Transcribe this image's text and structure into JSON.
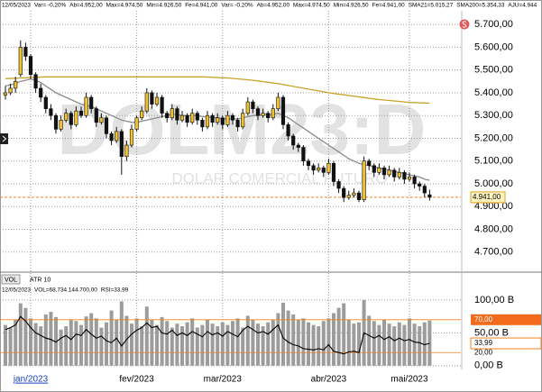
{
  "chart_data": [
    {
      "type": "candlestick",
      "info_items": [
        "12/05/2023",
        "Var= -0,20%",
        "Ab=4.952,00",
        "Max=4.974,50",
        "Min=4.926,50",
        "Fe=4.941,00",
        "Var= -0,20%",
        "Ab=4.952,00",
        "Max=4.974,50",
        "Min=4.926,50",
        "Fe=4.941,00",
        "SMA21=5.015,27",
        "SMA200=5.354,33",
        "AJU=4.944"
      ],
      "watermark": [
        "DOLM23:D",
        "DOLAR COMERCIAL FUTURO"
      ],
      "colors": {
        "up": "#f2c12e",
        "down": "#111111"
      },
      "ohlc": [
        [
          5390,
          5430,
          5370,
          5400
        ],
        [
          5400,
          5440,
          5390,
          5420
        ],
        [
          5420,
          5470,
          5400,
          5450
        ],
        [
          5480,
          5630,
          5470,
          5600
        ],
        [
          5600,
          5620,
          5540,
          5560
        ],
        [
          5560,
          5570,
          5460,
          5480
        ],
        [
          5480,
          5490,
          5400,
          5420
        ],
        [
          5420,
          5440,
          5360,
          5380
        ],
        [
          5380,
          5390,
          5310,
          5330
        ],
        [
          5330,
          5350,
          5280,
          5300
        ],
        [
          5300,
          5310,
          5220,
          5240
        ],
        [
          5240,
          5300,
          5230,
          5280
        ],
        [
          5280,
          5330,
          5270,
          5310
        ],
        [
          5310,
          5320,
          5240,
          5260
        ],
        [
          5260,
          5340,
          5250,
          5320
        ],
        [
          5320,
          5340,
          5290,
          5300
        ],
        [
          5300,
          5400,
          5290,
          5380
        ],
        [
          5380,
          5390,
          5310,
          5330
        ],
        [
          5330,
          5340,
          5250,
          5270
        ],
        [
          5270,
          5310,
          5260,
          5290
        ],
        [
          5290,
          5300,
          5200,
          5220
        ],
        [
          5220,
          5230,
          5170,
          5190
        ],
        [
          5190,
          5250,
          5180,
          5230
        ],
        [
          5230,
          5240,
          5040,
          5120
        ],
        [
          5120,
          5190,
          5100,
          5170
        ],
        [
          5170,
          5260,
          5160,
          5240
        ],
        [
          5240,
          5300,
          5230,
          5290
        ],
        [
          5290,
          5340,
          5280,
          5320
        ],
        [
          5320,
          5420,
          5310,
          5400
        ],
        [
          5400,
          5410,
          5330,
          5350
        ],
        [
          5350,
          5400,
          5340,
          5380
        ],
        [
          5380,
          5390,
          5290,
          5310
        ],
        [
          5310,
          5320,
          5270,
          5290
        ],
        [
          5290,
          5350,
          5280,
          5330
        ],
        [
          5330,
          5340,
          5260,
          5280
        ],
        [
          5280,
          5320,
          5270,
          5300
        ],
        [
          5300,
          5310,
          5250,
          5270
        ],
        [
          5270,
          5330,
          5260,
          5310
        ],
        [
          5310,
          5320,
          5260,
          5280
        ],
        [
          5280,
          5290,
          5230,
          5250
        ],
        [
          5250,
          5320,
          5240,
          5300
        ],
        [
          5300,
          5310,
          5250,
          5270
        ],
        [
          5270,
          5310,
          5260,
          5290
        ],
        [
          5290,
          5300,
          5240,
          5260
        ],
        [
          5260,
          5320,
          5250,
          5300
        ],
        [
          5300,
          5310,
          5260,
          5280
        ],
        [
          5280,
          5290,
          5230,
          5250
        ],
        [
          5250,
          5330,
          5240,
          5310
        ],
        [
          5310,
          5380,
          5300,
          5360
        ],
        [
          5360,
          5370,
          5310,
          5330
        ],
        [
          5330,
          5340,
          5280,
          5300
        ],
        [
          5300,
          5330,
          5290,
          5310
        ],
        [
          5310,
          5320,
          5270,
          5290
        ],
        [
          5290,
          5350,
          5280,
          5330
        ],
        [
          5330,
          5400,
          5320,
          5380
        ],
        [
          5380,
          5390,
          5240,
          5260
        ],
        [
          5260,
          5270,
          5190,
          5210
        ],
        [
          5210,
          5220,
          5150,
          5170
        ],
        [
          5170,
          5180,
          5140,
          5160
        ],
        [
          5160,
          5170,
          5080,
          5100
        ],
        [
          5100,
          5110,
          5060,
          5080
        ],
        [
          5080,
          5090,
          5040,
          5060
        ],
        [
          5060,
          5090,
          5050,
          5070
        ],
        [
          5070,
          5080,
          5030,
          5050
        ],
        [
          5050,
          5110,
          5040,
          5090
        ],
        [
          5090,
          5100,
          4990,
          5010
        ],
        [
          5010,
          5020,
          4960,
          4980
        ],
        [
          4980,
          4990,
          4920,
          4940
        ],
        [
          4940,
          4970,
          4930,
          4950
        ],
        [
          4950,
          4980,
          4940,
          4960
        ],
        [
          4960,
          4970,
          4920,
          4930
        ],
        [
          4930,
          5120,
          4920,
          5100
        ],
        [
          5100,
          5110,
          5060,
          5080
        ],
        [
          5080,
          5090,
          5030,
          5050
        ],
        [
          5050,
          5090,
          5040,
          5070
        ],
        [
          5070,
          5080,
          5020,
          5040
        ],
        [
          5040,
          5080,
          5030,
          5060
        ],
        [
          5060,
          5070,
          5010,
          5030
        ],
        [
          5030,
          5070,
          5020,
          5050
        ],
        [
          5050,
          5060,
          5000,
          5020
        ],
        [
          5020,
          5050,
          5010,
          5030
        ],
        [
          5030,
          5040,
          4980,
          5000
        ],
        [
          5000,
          5010,
          4970,
          4990
        ],
        [
          4990,
          5000,
          4940,
          4960
        ],
        [
          4952,
          4974.5,
          4926.5,
          4941
        ]
      ],
      "lines": [
        {
          "color": "#8c8c8c",
          "values": [
            5430,
            5435,
            5440,
            5450,
            5455,
            5460,
            5455,
            5445,
            5430,
            5415,
            5400,
            5390,
            5380,
            5370,
            5360,
            5350,
            5345,
            5340,
            5330,
            5320,
            5310,
            5300,
            5290,
            5280,
            5275,
            5270,
            5270,
            5275,
            5280,
            5285,
            5290,
            5295,
            5300,
            5305,
            5305,
            5300,
            5300,
            5300,
            5300,
            5295,
            5295,
            5290,
            5290,
            5285,
            5285,
            5285,
            5285,
            5290,
            5295,
            5300,
            5300,
            5305,
            5305,
            5305,
            5310,
            5300,
            5290,
            5275,
            5260,
            5245,
            5230,
            5215,
            5200,
            5185,
            5170,
            5155,
            5140,
            5125,
            5110,
            5100,
            5090,
            5085,
            5080,
            5075,
            5070,
            5065,
            5060,
            5055,
            5050,
            5045,
            5040,
            5035,
            5030,
            5020,
            5015.27
          ]
        },
        {
          "color": "#c9a227",
          "values": [
            5462,
            5463,
            5464,
            5465,
            5466,
            5467,
            5468,
            5469,
            5470,
            5470,
            5470,
            5470,
            5470,
            5470,
            5470,
            5470,
            5470,
            5470,
            5470,
            5470,
            5470,
            5470,
            5470,
            5470,
            5470,
            5470,
            5470,
            5470,
            5470,
            5470,
            5470,
            5470,
            5470,
            5470,
            5470,
            5470,
            5470,
            5470,
            5470,
            5470,
            5469,
            5468,
            5467,
            5466,
            5465,
            5463,
            5461,
            5459,
            5457,
            5455,
            5452,
            5449,
            5446,
            5443,
            5440,
            5436,
            5432,
            5428,
            5424,
            5420,
            5416,
            5412,
            5408,
            5404,
            5400,
            5397,
            5394,
            5391,
            5388,
            5385,
            5382,
            5379,
            5376,
            5373,
            5370,
            5368,
            5366,
            5364,
            5362,
            5360,
            5358,
            5357,
            5356,
            5355,
            5354.33
          ]
        }
      ],
      "ylim": [
        4620,
        5760
      ],
      "yticks": [
        {
          "value": 4700,
          "label": "4.700,00"
        },
        {
          "value": 4800,
          "label": "4.800,00"
        },
        {
          "value": 4900,
          "label": "4.900,00"
        },
        {
          "value": 5000,
          "label": "5.000,00"
        },
        {
          "value": 5100,
          "label": "5.100,00"
        },
        {
          "value": 5200,
          "label": "5.200,00"
        },
        {
          "value": 5300,
          "label": "5.300,00"
        },
        {
          "value": 5400,
          "label": "5.400,00"
        },
        {
          "value": 5500,
          "label": "5.500,00"
        },
        {
          "value": 5600,
          "label": "5.600,00"
        },
        {
          "value": 5700,
          "label": "5.700,00"
        }
      ],
      "xticks": [
        {
          "value": 5,
          "label": "jan/2023"
        },
        {
          "value": 26,
          "label": "fev/2023"
        },
        {
          "value": 43,
          "label": "mar/2023"
        },
        {
          "value": 64,
          "label": "abr/2023"
        },
        {
          "value": 80,
          "label": "mai/2023"
        }
      ],
      "last_label": {
        "value": 4941,
        "label": "4.941,00"
      },
      "grid": true
    },
    {
      "type": "bar",
      "tabs": [
        "ATR 10"
      ],
      "info_items": [
        "12/05/2023",
        "VOL=68.734.144.700,00",
        "RSI=33,99"
      ],
      "series": [
        {
          "name": "VOL",
          "color": "#9c9c9c",
          "values": [
            62,
            58,
            70,
            95,
            88,
            72,
            65,
            60,
            78,
            82,
            74,
            55,
            60,
            70,
            68,
            62,
            75,
            80,
            72,
            58,
            66,
            84,
            70,
            98,
            76,
            64,
            72,
            60,
            90,
            70,
            62,
            74,
            68,
            58,
            64,
            60,
            66,
            72,
            58,
            62,
            70,
            64,
            60,
            66,
            62,
            68,
            72,
            58,
            76,
            70,
            64,
            60,
            66,
            70,
            80,
            96,
            84,
            78,
            70,
            72,
            66,
            62,
            60,
            68,
            72,
            80,
            88,
            95,
            70,
            64,
            66,
            100,
            76,
            68,
            62,
            70,
            64,
            60,
            66,
            62,
            72,
            64,
            60,
            66,
            68.73
          ]
        },
        {
          "color": "#000000",
          "axis": "y2",
          "values": [
            55,
            58,
            62,
            75,
            68,
            58,
            50,
            46,
            42,
            40,
            36,
            42,
            46,
            40,
            48,
            46,
            55,
            48,
            42,
            45,
            38,
            35,
            42,
            30,
            40,
            48,
            54,
            58,
            65,
            58,
            60,
            50,
            48,
            54,
            46,
            50,
            46,
            52,
            48,
            44,
            52,
            47,
            50,
            45,
            52,
            48,
            44,
            54,
            60,
            55,
            50,
            52,
            48,
            55,
            62,
            42,
            36,
            32,
            30,
            26,
            25,
            24,
            26,
            24,
            32,
            22,
            20,
            18,
            21,
            22,
            20,
            50,
            46,
            42,
            46,
            40,
            44,
            38,
            42,
            38,
            40,
            36,
            35,
            32,
            33.99
          ]
        }
      ],
      "ylim": [
        -3,
        115
      ],
      "yticks": [
        {
          "value": 0,
          "label": "0,00 B"
        },
        {
          "value": 50,
          "label": "50,00 B"
        },
        {
          "value": 100,
          "label": "100,00 B"
        }
      ],
      "y2lim": [
        -3,
        115
      ],
      "y2ticks": [
        {
          "value": 70,
          "label": "70,00"
        },
        {
          "value": 20,
          "label": "20,00"
        }
      ],
      "last_label": {
        "value": 33.99,
        "label": "33,99"
      }
    }
  ]
}
